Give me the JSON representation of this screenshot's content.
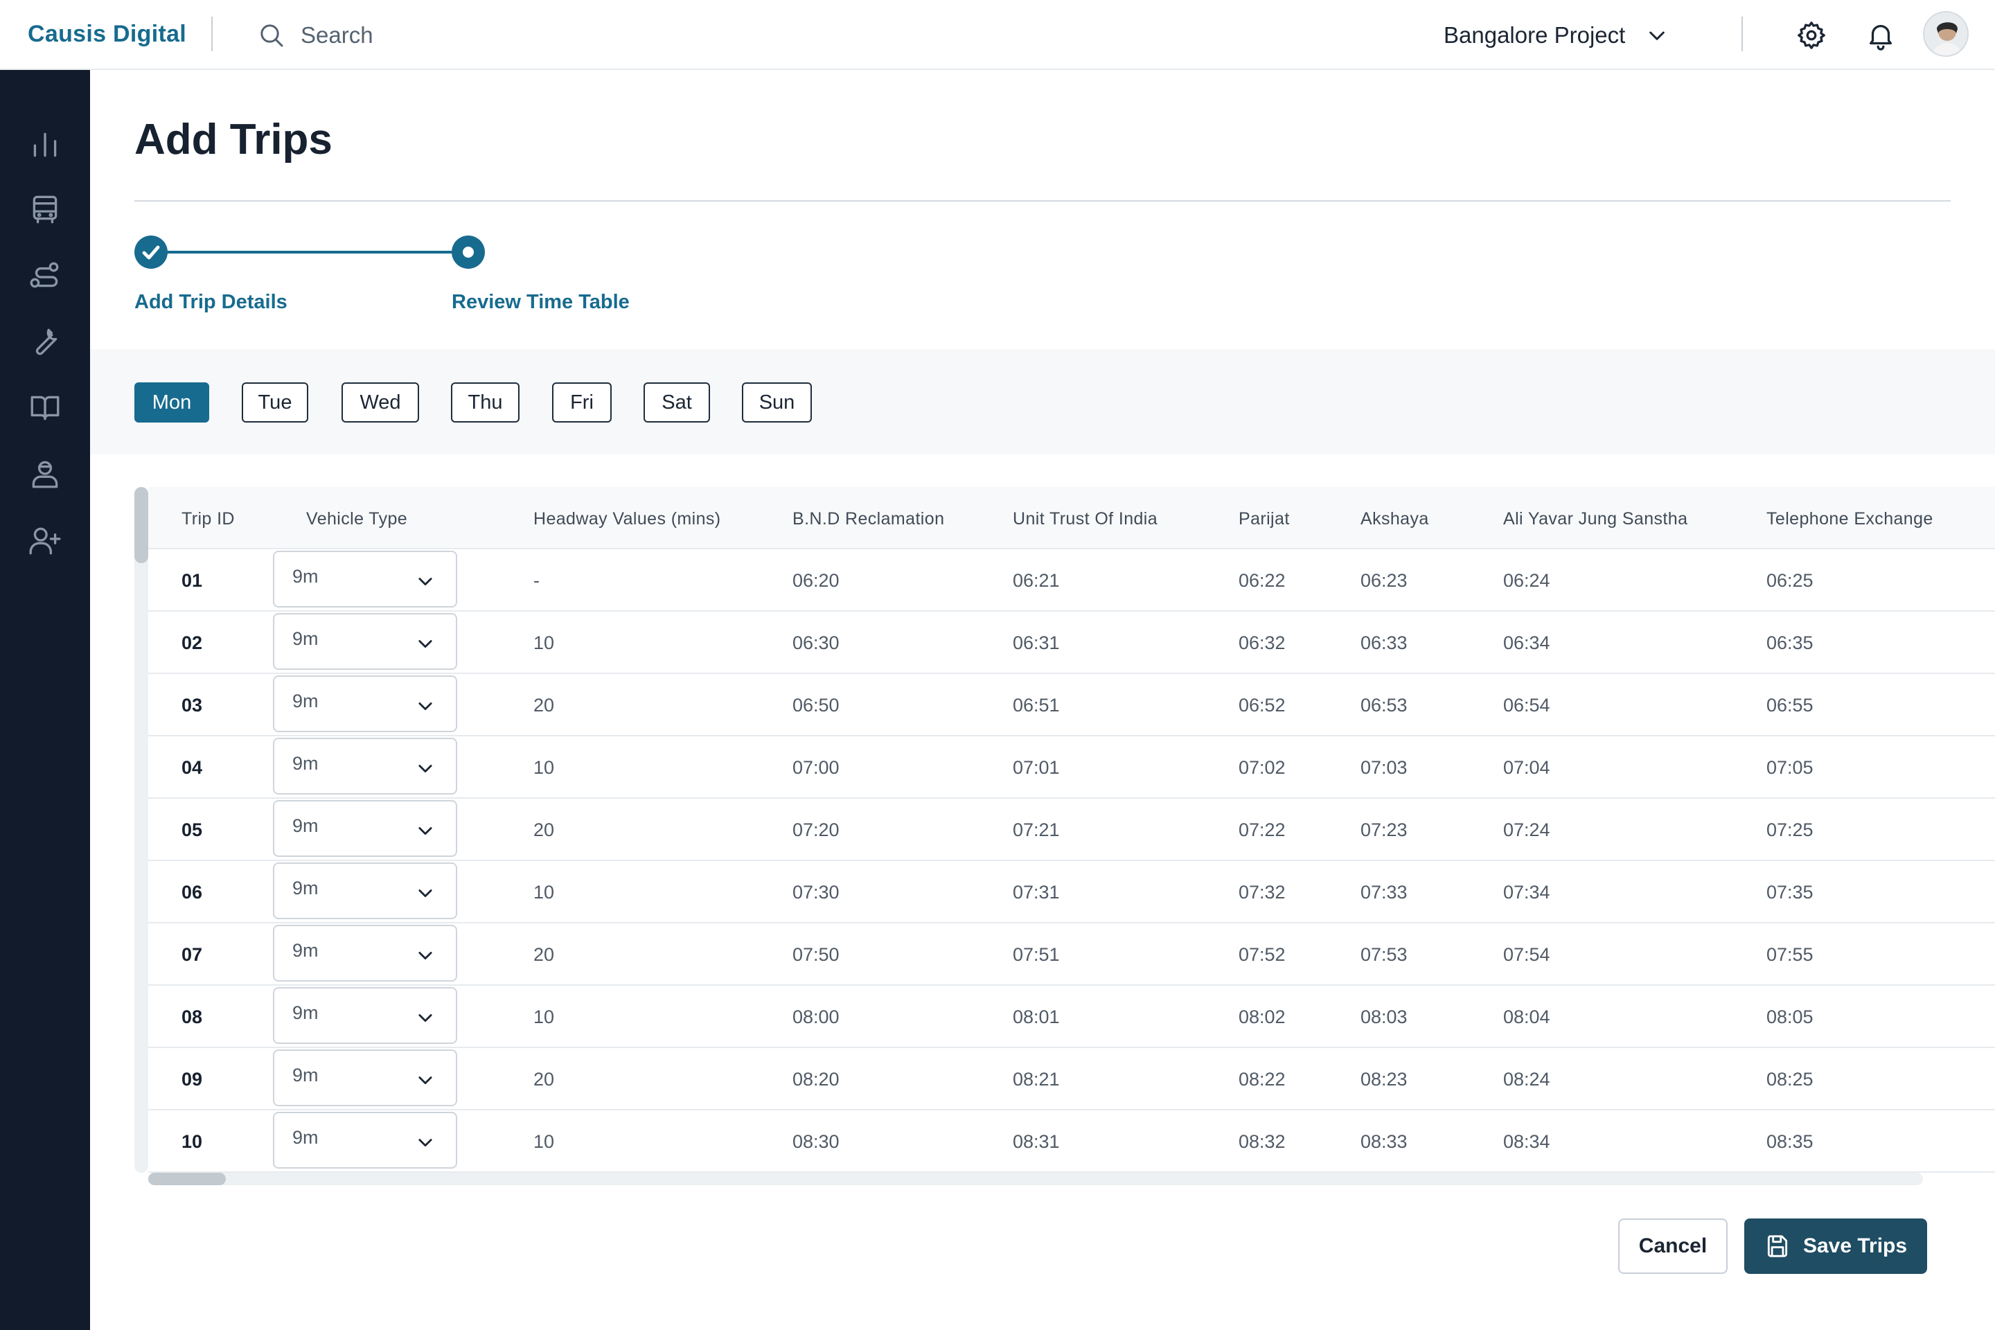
{
  "header": {
    "brand": "Causis Digital",
    "search_label": "Search",
    "project": "Bangalore Project",
    "icons": [
      "search-icon",
      "chevron-down-icon",
      "settings-icon",
      "bell-icon",
      "avatar"
    ]
  },
  "sidebar": {
    "icons": [
      "bar-chart-icon",
      "bus-icon",
      "route-icon",
      "wrench-icon",
      "book-icon",
      "driver-icon",
      "add-user-icon"
    ]
  },
  "page": {
    "title": "Add Trips"
  },
  "stepper": {
    "steps": [
      {
        "label": "Add Trip Details",
        "state": "complete"
      },
      {
        "label": "Review Time Table",
        "state": "current"
      }
    ]
  },
  "days": {
    "selected": "Mon",
    "items": [
      "Mon",
      "Tue",
      "Wed",
      "Thu",
      "Fri",
      "Sat",
      "Sun"
    ]
  },
  "table": {
    "columns": [
      "Trip ID",
      "Vehicle Type",
      "Headway Values (mins)",
      "B.N.D Reclamation",
      "Unit Trust Of India",
      "Parijat",
      "Akshaya",
      "Ali Yavar Jung Sanstha",
      "Telephone Exchange"
    ],
    "rows": [
      {
        "id": "01",
        "vehicle": "9m",
        "headway": "-",
        "times": [
          "06:20",
          "06:21",
          "06:22",
          "06:23",
          "06:24",
          "06:25"
        ]
      },
      {
        "id": "02",
        "vehicle": "9m",
        "headway": "10",
        "times": [
          "06:30",
          "06:31",
          "06:32",
          "06:33",
          "06:34",
          "06:35"
        ]
      },
      {
        "id": "03",
        "vehicle": "9m",
        "headway": "20",
        "times": [
          "06:50",
          "06:51",
          "06:52",
          "06:53",
          "06:54",
          "06:55"
        ]
      },
      {
        "id": "04",
        "vehicle": "9m",
        "headway": "10",
        "times": [
          "07:00",
          "07:01",
          "07:02",
          "07:03",
          "07:04",
          "07:05"
        ]
      },
      {
        "id": "05",
        "vehicle": "9m",
        "headway": "20",
        "times": [
          "07:20",
          "07:21",
          "07:22",
          "07:23",
          "07:24",
          "07:25"
        ]
      },
      {
        "id": "06",
        "vehicle": "9m",
        "headway": "10",
        "times": [
          "07:30",
          "07:31",
          "07:32",
          "07:33",
          "07:34",
          "07:35"
        ]
      },
      {
        "id": "07",
        "vehicle": "9m",
        "headway": "20",
        "times": [
          "07:50",
          "07:51",
          "07:52",
          "07:53",
          "07:54",
          "07:55"
        ]
      },
      {
        "id": "08",
        "vehicle": "9m",
        "headway": "10",
        "times": [
          "08:00",
          "08:01",
          "08:02",
          "08:03",
          "08:04",
          "08:05"
        ]
      },
      {
        "id": "09",
        "vehicle": "9m",
        "headway": "20",
        "times": [
          "08:20",
          "08:21",
          "08:22",
          "08:23",
          "08:24",
          "08:25"
        ]
      },
      {
        "id": "10",
        "vehicle": "9m",
        "headway": "10",
        "times": [
          "08:30",
          "08:31",
          "08:32",
          "08:33",
          "08:34",
          "08:35"
        ]
      }
    ]
  },
  "footer": {
    "cancel_label": "Cancel",
    "save_label": "Save Trips"
  },
  "colors": {
    "accent": "#176b8f",
    "sidebar": "#111b2b",
    "save_button": "#1f4d63"
  }
}
